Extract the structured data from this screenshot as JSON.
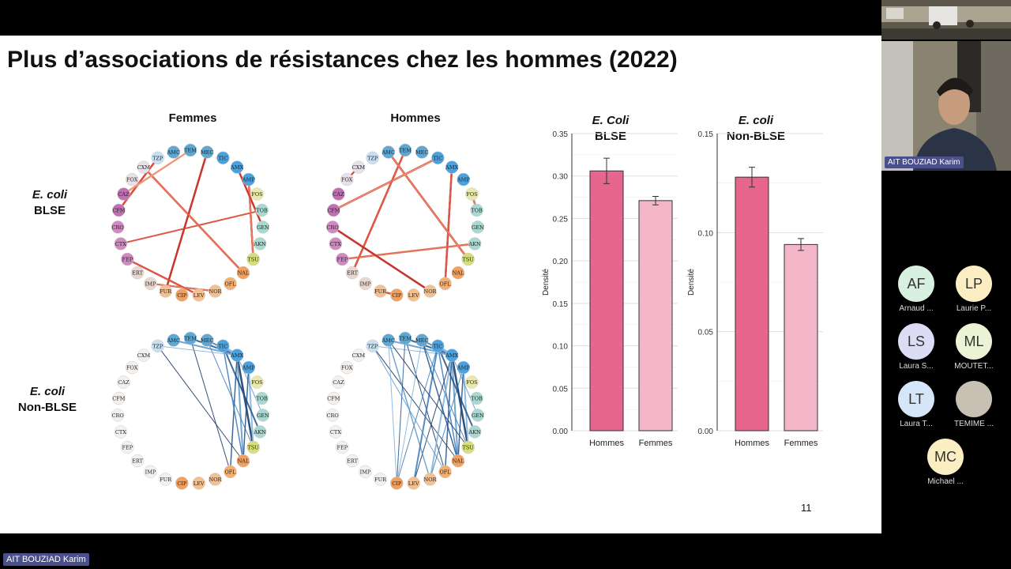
{
  "slide": {
    "title": "Plus d’associations de résistances chez les hommes (2022)",
    "col_femmes": "Femmes",
    "col_hommes": "Hommes",
    "row1_line1": "E. coli",
    "row1_line2": "BLSE",
    "row2_line1": "E. coli",
    "row2_line2": "Non-BLSE",
    "page_number": "11",
    "network_nodes": [
      "TEM",
      "MEC",
      "TIC",
      "AMX",
      "AMP",
      "FOS",
      "TOB",
      "GEN",
      "AKN",
      "TSU",
      "NAL",
      "OFL",
      "NOR",
      "LEV",
      "CIP",
      "FUR",
      "IMP",
      "ERT",
      "FEP",
      "CTX",
      "CRO",
      "CFM",
      "CAZ",
      "FOX",
      "CXM",
      "TZP",
      "AMC"
    ]
  },
  "chart_data": [
    {
      "type": "bar",
      "title_line1": "E. Coli",
      "title_line2": "BLSE",
      "ylabel": "Densité",
      "categories": [
        "Hommes",
        "Femmes"
      ],
      "values": [
        0.306,
        0.271
      ],
      "errors": [
        0.015,
        0.005
      ],
      "ylim": [
        0,
        0.35
      ],
      "yticks": [
        "0.00",
        "0.05",
        "0.10",
        "0.15",
        "0.20",
        "0.25",
        "0.30",
        "0.35"
      ],
      "colors": [
        "#e8668e",
        "#f4b6c9"
      ]
    },
    {
      "type": "bar",
      "title_line1": "E. coli",
      "title_line2": "Non-BLSE",
      "ylabel": "Densité",
      "categories": [
        "Hommes",
        "Femmes"
      ],
      "values": [
        0.128,
        0.094
      ],
      "errors": [
        0.005,
        0.003
      ],
      "ylim": [
        0,
        0.15
      ],
      "yticks": [
        "0.00",
        "0.05",
        "0.10",
        "0.15"
      ],
      "colors": [
        "#e8668e",
        "#f4b6c9"
      ]
    }
  ],
  "video": {
    "presenter_name": "AIT BOUZIAD Karim",
    "bottom_name": "AIT BOUZIAD Karim"
  },
  "participants": [
    {
      "initials": "AF",
      "name": "Arnaud ...",
      "color": "#d7f0e0"
    },
    {
      "initials": "LP",
      "name": "Laurie  P...",
      "color": "#fbeec2"
    },
    {
      "initials": "LS",
      "name": "Laura  S...",
      "color": "#dcdcf5"
    },
    {
      "initials": "ML",
      "name": "MOUTET...",
      "color": "#eaf3d5"
    },
    {
      "initials": "LT",
      "name": "Laura  T...",
      "color": "#d4e6f7"
    },
    {
      "initials": "",
      "name": "TEMIME ...",
      "color": "#c9c0b4"
    },
    {
      "initials": "MC",
      "name": "Michael ...",
      "color": "#fbeec2"
    }
  ]
}
